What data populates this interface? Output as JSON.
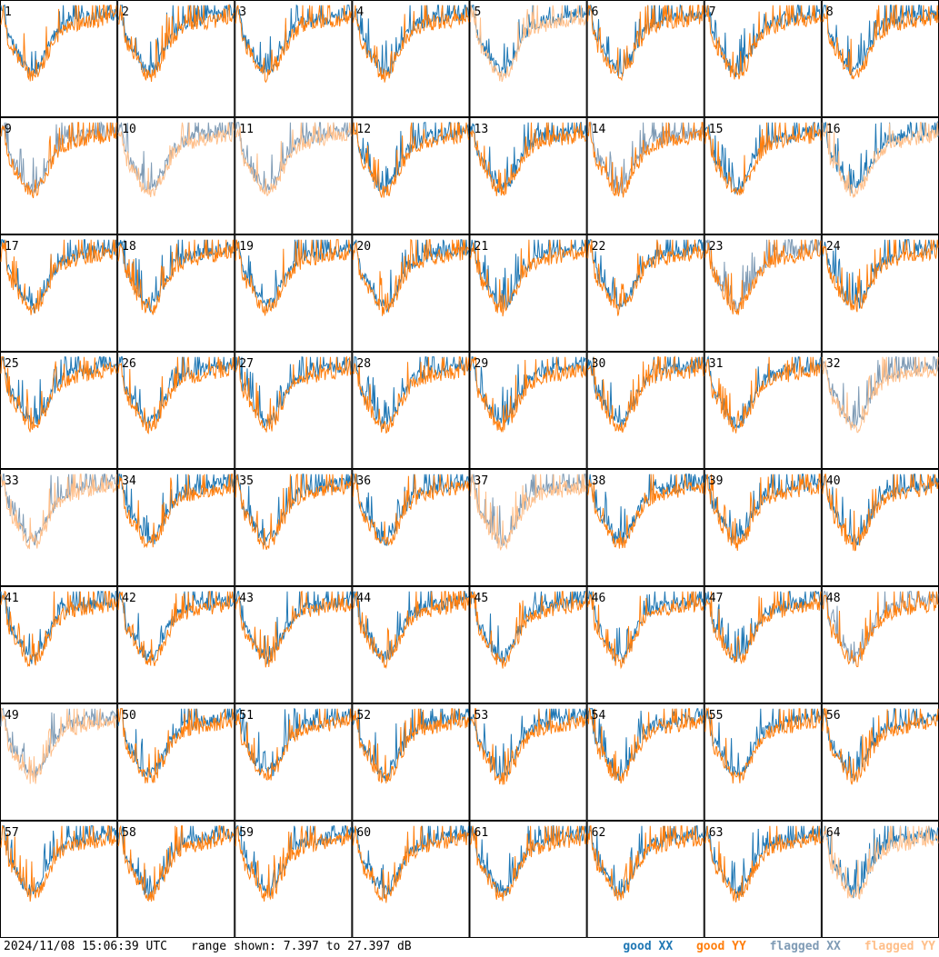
{
  "chart_data": {
    "type": "line",
    "timestamp": "2024/11/08 15:06:39 UTC",
    "range_text": "range shown: 7.397 to 27.397 dB",
    "ylim": [
      7.397,
      27.397
    ],
    "legend": [
      {
        "label": "good XX",
        "color": "#1f77b4"
      },
      {
        "label": "good YY",
        "color": "#ff7f0e"
      },
      {
        "label": "flagged XX",
        "color": "#7f9bb5"
      },
      {
        "label": "flagged YY",
        "color": "#ffbf8a"
      }
    ],
    "panels": [
      {
        "id": "1",
        "xx": "good",
        "yy": "good"
      },
      {
        "id": "2",
        "xx": "good",
        "yy": "good"
      },
      {
        "id": "3",
        "xx": "good",
        "yy": "good"
      },
      {
        "id": "4",
        "xx": "good",
        "yy": "good"
      },
      {
        "id": "5",
        "xx": "good",
        "yy": "flagged"
      },
      {
        "id": "6",
        "xx": "good",
        "yy": "good"
      },
      {
        "id": "7",
        "xx": "good",
        "yy": "good"
      },
      {
        "id": "8",
        "xx": "good",
        "yy": "good"
      },
      {
        "id": "9",
        "xx": "flagged",
        "yy": "good"
      },
      {
        "id": "10",
        "xx": "flagged",
        "yy": "flagged"
      },
      {
        "id": "11",
        "xx": "flagged",
        "yy": "flagged"
      },
      {
        "id": "12",
        "xx": "good",
        "yy": "good"
      },
      {
        "id": "13",
        "xx": "good",
        "yy": "good"
      },
      {
        "id": "14",
        "xx": "flagged",
        "yy": "good"
      },
      {
        "id": "15",
        "xx": "good",
        "yy": "good"
      },
      {
        "id": "16",
        "xx": "good",
        "yy": "flagged"
      },
      {
        "id": "17",
        "xx": "good",
        "yy": "good"
      },
      {
        "id": "18",
        "xx": "good",
        "yy": "good"
      },
      {
        "id": "19",
        "xx": "good",
        "yy": "good"
      },
      {
        "id": "20",
        "xx": "good",
        "yy": "good"
      },
      {
        "id": "21",
        "xx": "good",
        "yy": "good"
      },
      {
        "id": "22",
        "xx": "good",
        "yy": "good"
      },
      {
        "id": "23",
        "xx": "flagged",
        "yy": "good"
      },
      {
        "id": "24",
        "xx": "good",
        "yy": "good"
      },
      {
        "id": "25",
        "xx": "good",
        "yy": "good"
      },
      {
        "id": "26",
        "xx": "good",
        "yy": "good"
      },
      {
        "id": "27",
        "xx": "good",
        "yy": "good"
      },
      {
        "id": "28",
        "xx": "good",
        "yy": "good"
      },
      {
        "id": "29",
        "xx": "good",
        "yy": "good"
      },
      {
        "id": "30",
        "xx": "good",
        "yy": "good"
      },
      {
        "id": "31",
        "xx": "good",
        "yy": "good"
      },
      {
        "id": "32",
        "xx": "flagged",
        "yy": "flagged"
      },
      {
        "id": "33",
        "xx": "flagged",
        "yy": "flagged"
      },
      {
        "id": "34",
        "xx": "good",
        "yy": "good"
      },
      {
        "id": "35",
        "xx": "good",
        "yy": "good"
      },
      {
        "id": "36",
        "xx": "good",
        "yy": "good"
      },
      {
        "id": "37",
        "xx": "flagged",
        "yy": "flagged"
      },
      {
        "id": "38",
        "xx": "good",
        "yy": "good"
      },
      {
        "id": "39",
        "xx": "good",
        "yy": "good"
      },
      {
        "id": "40",
        "xx": "good",
        "yy": "good"
      },
      {
        "id": "41",
        "xx": "good",
        "yy": "good"
      },
      {
        "id": "42",
        "xx": "good",
        "yy": "good"
      },
      {
        "id": "43",
        "xx": "good",
        "yy": "good"
      },
      {
        "id": "44",
        "xx": "good",
        "yy": "good"
      },
      {
        "id": "45",
        "xx": "good",
        "yy": "good"
      },
      {
        "id": "46",
        "xx": "good",
        "yy": "good"
      },
      {
        "id": "47",
        "xx": "good",
        "yy": "good"
      },
      {
        "id": "48",
        "xx": "flagged",
        "yy": "good"
      },
      {
        "id": "49",
        "xx": "flagged",
        "yy": "flagged"
      },
      {
        "id": "50",
        "xx": "good",
        "yy": "good"
      },
      {
        "id": "51",
        "xx": "good",
        "yy": "good"
      },
      {
        "id": "52",
        "xx": "good",
        "yy": "good"
      },
      {
        "id": "53",
        "xx": "good",
        "yy": "good"
      },
      {
        "id": "54",
        "xx": "good",
        "yy": "good"
      },
      {
        "id": "55",
        "xx": "good",
        "yy": "good"
      },
      {
        "id": "56",
        "xx": "good",
        "yy": "good"
      },
      {
        "id": "57",
        "xx": "good",
        "yy": "good"
      },
      {
        "id": "58",
        "xx": "good",
        "yy": "good"
      },
      {
        "id": "59",
        "xx": "good",
        "yy": "good"
      },
      {
        "id": "60",
        "xx": "good",
        "yy": "good"
      },
      {
        "id": "61",
        "xx": "good",
        "yy": "good"
      },
      {
        "id": "62",
        "xx": "good",
        "yy": "good"
      },
      {
        "id": "63",
        "xx": "good",
        "yy": "good"
      },
      {
        "id": "64",
        "xx": "good",
        "yy": "flagged"
      }
    ]
  }
}
